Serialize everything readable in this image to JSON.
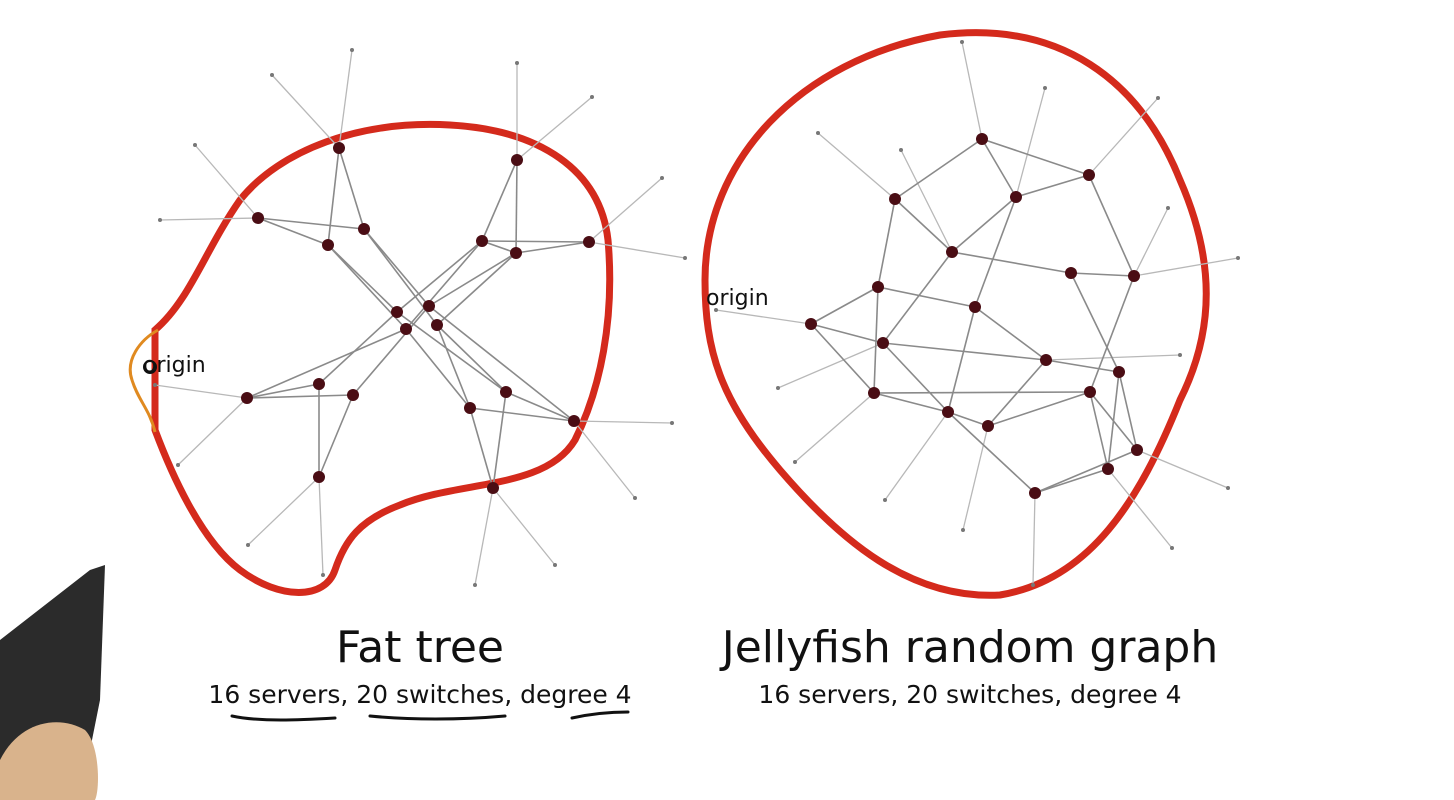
{
  "fat_tree": {
    "title": "Fat tree",
    "subtitle": "16 servers, 20 switches, degree 4",
    "origin_label": "origin"
  },
  "jellyfish": {
    "title": "Jellyfish random graph",
    "subtitle": "16 servers, 20 switches, degree 4",
    "origin_label": "origin"
  },
  "colors": {
    "outline": "#d42a1c",
    "node": "#4a0d14",
    "edge": "#8a8a8a",
    "server_edge": "#b8b8b8",
    "highlight": "#e08a20"
  }
}
